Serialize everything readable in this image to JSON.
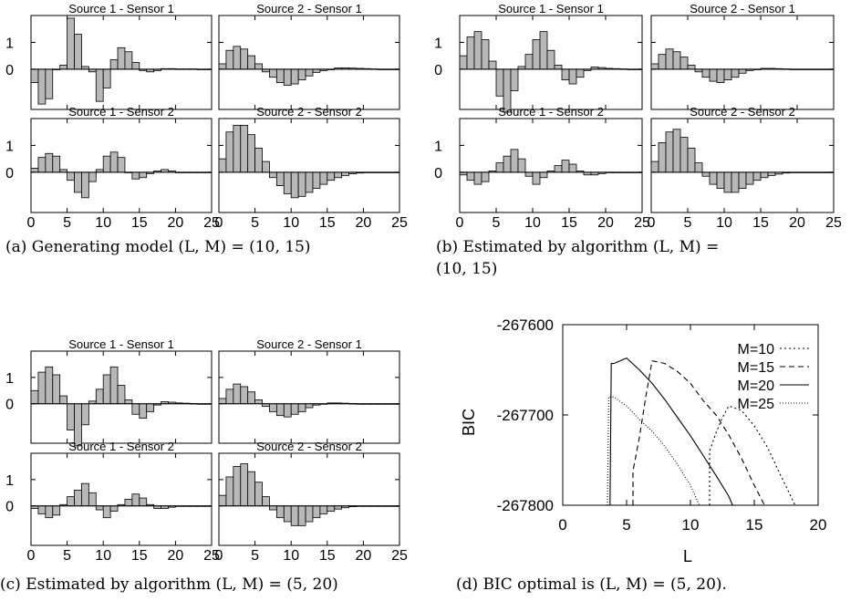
{
  "figures": [
    {
      "caption": "(a) Generating model (L, M) = (10, 15)",
      "panels": [
        {
          "title": "Source 1 - Sensor 1"
        },
        {
          "title": "Source 2 - Sensor 1"
        },
        {
          "title": "Source 1 - Sensor 2"
        },
        {
          "title": "Source 2 - Sensor 2"
        }
      ]
    },
    {
      "caption_line1": "(b) Estimated by algorithm (L, M) =",
      "caption_line2": "(10, 15)",
      "panels": [
        {
          "title": "Source 1 - Sensor 1"
        },
        {
          "title": "Source 2 - Sensor 1"
        },
        {
          "title": "Source 1 - Sensor 2"
        },
        {
          "title": "Source 2 - Sensor 2"
        }
      ]
    },
    {
      "caption": "(c) Estimated by algorithm (L, M) = (5, 20)",
      "panels": [
        {
          "title": "Source 1 - Sensor 1"
        },
        {
          "title": "Source 2 - Sensor 1"
        },
        {
          "title": "Source 1 - Sensor 2"
        },
        {
          "title": "Source 2 - Sensor 2"
        }
      ]
    },
    {
      "caption": "(d) BIC optimal is (L, M) = (5, 20)."
    }
  ],
  "chart_data": [
    {
      "type": "bar",
      "figure": "a",
      "xlim": [
        0,
        25
      ],
      "ylim": [
        -1.5,
        2.0
      ],
      "xticks": [
        "0",
        "5",
        "10",
        "15",
        "20",
        "25"
      ],
      "yticks": [
        "0",
        "1"
      ],
      "panels": [
        {
          "title": "Source 1 - Sensor 1",
          "x": [
            0,
            1,
            2,
            3,
            4,
            5,
            6,
            7,
            8,
            9,
            10,
            11,
            12,
            13,
            14,
            15,
            16,
            17,
            18,
            19,
            20,
            21,
            22,
            23,
            24
          ],
          "values": [
            -0.5,
            -1.3,
            -1.1,
            0,
            0.15,
            1.9,
            1.3,
            0.1,
            -0.1,
            -1.2,
            -0.7,
            0.35,
            0.8,
            0.65,
            0.25,
            -0.05,
            -0.1,
            -0.05,
            0.02,
            0.02,
            0.01,
            0.01,
            0.01,
            0.0,
            0.0
          ]
        },
        {
          "title": "Source 2 - Sensor 1",
          "x": [
            0,
            1,
            2,
            3,
            4,
            5,
            6,
            7,
            8,
            9,
            10,
            11,
            12,
            13,
            14,
            15,
            16,
            17,
            18,
            19,
            20,
            21,
            22,
            23,
            24
          ],
          "values": [
            0.2,
            0.7,
            0.85,
            0.75,
            0.5,
            0.2,
            -0.1,
            -0.3,
            -0.5,
            -0.6,
            -0.55,
            -0.4,
            -0.25,
            -0.12,
            -0.05,
            0.0,
            0.05,
            0.05,
            0.04,
            0.03,
            0.02,
            0.01,
            0.0,
            0.0,
            0.0
          ]
        },
        {
          "title": "Source 1 - Sensor 2",
          "x": [
            0,
            1,
            2,
            3,
            4,
            5,
            6,
            7,
            8,
            9,
            10,
            11,
            12,
            13,
            14,
            15,
            16,
            17,
            18,
            19,
            20,
            21,
            22,
            23,
            24
          ],
          "values": [
            0.15,
            0.55,
            0.7,
            0.6,
            0.1,
            -0.3,
            -0.75,
            -0.95,
            -0.35,
            0.1,
            0.6,
            0.75,
            0.55,
            0.0,
            -0.25,
            -0.2,
            -0.05,
            0.05,
            0.1,
            0.05,
            0.0,
            0.0,
            0.0,
            0.0,
            0.0
          ]
        },
        {
          "title": "Source 2 - Sensor 2",
          "x": [
            0,
            1,
            2,
            3,
            4,
            5,
            6,
            7,
            8,
            9,
            10,
            11,
            12,
            13,
            14,
            15,
            16,
            17,
            18,
            19,
            20,
            21,
            22,
            23,
            24
          ],
          "values": [
            0.5,
            1.5,
            1.75,
            1.75,
            1.4,
            0.9,
            0.4,
            -0.2,
            -0.5,
            -0.8,
            -0.95,
            -0.9,
            -0.75,
            -0.6,
            -0.45,
            -0.3,
            -0.2,
            -0.12,
            -0.06,
            -0.03,
            -0.01,
            0.0,
            0.0,
            0.0,
            0.0
          ]
        }
      ]
    },
    {
      "type": "bar",
      "figure": "b",
      "xlim": [
        0,
        25
      ],
      "ylim": [
        -1.5,
        2.0
      ],
      "xticks": [
        "0",
        "5",
        "10",
        "15",
        "20",
        "25"
      ],
      "yticks": [
        "0",
        "1"
      ],
      "panels": [
        {
          "title": "Source 1 - Sensor 1",
          "x": [
            0,
            1,
            2,
            3,
            4,
            5,
            6,
            7,
            8,
            9,
            10,
            11,
            12,
            13,
            14,
            15,
            16,
            17,
            18,
            19,
            20,
            21,
            22,
            23,
            24
          ],
          "values": [
            0.5,
            1.2,
            1.4,
            1.1,
            0.3,
            -1.0,
            -1.6,
            -0.8,
            0.1,
            0.55,
            1.1,
            1.4,
            0.7,
            0.15,
            -0.4,
            -0.55,
            -0.3,
            -0.05,
            0.08,
            0.06,
            0.03,
            0.02,
            0.01,
            0.0,
            0.0
          ]
        },
        {
          "title": "Source 2 - Sensor 1",
          "x": [
            0,
            1,
            2,
            3,
            4,
            5,
            6,
            7,
            8,
            9,
            10,
            11,
            12,
            13,
            14,
            15,
            16,
            17,
            18,
            19,
            20,
            21,
            22,
            23,
            24
          ],
          "values": [
            0.2,
            0.55,
            0.75,
            0.65,
            0.45,
            0.15,
            -0.1,
            -0.3,
            -0.45,
            -0.5,
            -0.4,
            -0.3,
            -0.15,
            -0.05,
            0.0,
            0.03,
            0.03,
            0.02,
            0.01,
            0.0,
            0.0,
            0.0,
            0.0,
            0.0,
            0.0
          ]
        },
        {
          "title": "Source 1 - Sensor 2",
          "x": [
            0,
            1,
            2,
            3,
            4,
            5,
            6,
            7,
            8,
            9,
            10,
            11,
            12,
            13,
            14,
            15,
            16,
            17,
            18,
            19,
            20,
            21,
            22,
            23,
            24
          ],
          "values": [
            -0.1,
            -0.3,
            -0.45,
            -0.35,
            0.05,
            0.35,
            0.6,
            0.85,
            0.5,
            -0.15,
            -0.45,
            -0.2,
            0.05,
            0.25,
            0.45,
            0.3,
            0.05,
            -0.1,
            -0.1,
            -0.05,
            0.0,
            0.0,
            0.0,
            0.0,
            0.0
          ]
        },
        {
          "title": "Source 2 - Sensor 2",
          "x": [
            0,
            1,
            2,
            3,
            4,
            5,
            6,
            7,
            8,
            9,
            10,
            11,
            12,
            13,
            14,
            15,
            16,
            17,
            18,
            19,
            20,
            21,
            22,
            23,
            24
          ],
          "values": [
            0.4,
            1.1,
            1.5,
            1.6,
            1.3,
            0.9,
            0.35,
            -0.15,
            -0.45,
            -0.6,
            -0.75,
            -0.75,
            -0.6,
            -0.45,
            -0.3,
            -0.2,
            -0.12,
            -0.07,
            -0.03,
            -0.01,
            0.0,
            0.0,
            0.0,
            0.0,
            0.0
          ]
        }
      ]
    },
    {
      "type": "bar",
      "figure": "c",
      "xlim": [
        0,
        25
      ],
      "ylim": [
        -1.5,
        2.0
      ],
      "xticks": [
        "0",
        "5",
        "10",
        "15",
        "20",
        "25"
      ],
      "yticks": [
        "0",
        "1"
      ],
      "panels": [
        {
          "title": "Source 1 - Sensor 1",
          "x": [
            0,
            1,
            2,
            3,
            4,
            5,
            6,
            7,
            8,
            9,
            10,
            11,
            12,
            13,
            14,
            15,
            16,
            17,
            18,
            19,
            20,
            21,
            22,
            23,
            24
          ],
          "values": [
            0.5,
            1.2,
            1.4,
            1.1,
            0.3,
            -1.0,
            -1.6,
            -0.8,
            0.1,
            0.55,
            1.1,
            1.4,
            0.7,
            0.15,
            -0.4,
            -0.55,
            -0.3,
            -0.05,
            0.08,
            0.06,
            0.03,
            0.02,
            0.01,
            0.0,
            0.0
          ]
        },
        {
          "title": "Source 2 - Sensor 1",
          "x": [
            0,
            1,
            2,
            3,
            4,
            5,
            6,
            7,
            8,
            9,
            10,
            11,
            12,
            13,
            14,
            15,
            16,
            17,
            18,
            19,
            20,
            21,
            22,
            23,
            24
          ],
          "values": [
            0.2,
            0.55,
            0.75,
            0.65,
            0.45,
            0.15,
            -0.1,
            -0.3,
            -0.45,
            -0.5,
            -0.4,
            -0.3,
            -0.15,
            -0.05,
            0.0,
            0.03,
            0.03,
            0.02,
            0.01,
            0.0,
            0.0,
            0.0,
            0.0,
            0.0,
            0.0
          ]
        },
        {
          "title": "Source 1 - Sensor 2",
          "x": [
            0,
            1,
            2,
            3,
            4,
            5,
            6,
            7,
            8,
            9,
            10,
            11,
            12,
            13,
            14,
            15,
            16,
            17,
            18,
            19,
            20,
            21,
            22,
            23,
            24
          ],
          "values": [
            -0.1,
            -0.3,
            -0.45,
            -0.35,
            0.05,
            0.35,
            0.6,
            0.85,
            0.5,
            -0.15,
            -0.45,
            -0.2,
            0.05,
            0.25,
            0.45,
            0.3,
            0.05,
            -0.1,
            -0.1,
            -0.05,
            0.0,
            0.0,
            0.0,
            0.0,
            0.0
          ]
        },
        {
          "title": "Source 2 - Sensor 2",
          "x": [
            0,
            1,
            2,
            3,
            4,
            5,
            6,
            7,
            8,
            9,
            10,
            11,
            12,
            13,
            14,
            15,
            16,
            17,
            18,
            19,
            20,
            21,
            22,
            23,
            24
          ],
          "values": [
            0.4,
            1.1,
            1.5,
            1.6,
            1.3,
            0.9,
            0.35,
            -0.15,
            -0.45,
            -0.6,
            -0.75,
            -0.75,
            -0.6,
            -0.45,
            -0.3,
            -0.2,
            -0.12,
            -0.07,
            -0.03,
            -0.01,
            0.0,
            0.0,
            0.0,
            0.0,
            0.0
          ]
        }
      ]
    },
    {
      "type": "line",
      "figure": "d",
      "xlabel": "L",
      "ylabel": "BIC",
      "xlim": [
        0,
        20
      ],
      "ylim": [
        -267800,
        -267600
      ],
      "xticks": [
        "0",
        "5",
        "10",
        "15",
        "20"
      ],
      "yticks": [
        "-267600",
        "-267700",
        "-267800"
      ],
      "grid": false,
      "legend_position": "top-right",
      "series": [
        {
          "name": "M=10",
          "dash": "dotted-sparse",
          "x": [
            11.5,
            11.5,
            12,
            12.5,
            13,
            14,
            15,
            16,
            17,
            18.2
          ],
          "y": [
            -267800,
            -267740,
            -267720,
            -267703,
            -267690,
            -267695,
            -267712,
            -267735,
            -267765,
            -267800
          ]
        },
        {
          "name": "M=15",
          "dash": "dashed",
          "x": [
            5.5,
            5.5,
            6,
            6.5,
            7,
            8,
            9,
            10,
            11,
            12,
            13,
            14,
            15,
            15.8
          ],
          "y": [
            -267800,
            -267762,
            -267725,
            -267680,
            -267640,
            -267643,
            -267652,
            -267665,
            -267684,
            -267700,
            -267722,
            -267748,
            -267778,
            -267800
          ]
        },
        {
          "name": "M=20",
          "dash": "solid",
          "x": [
            3.7,
            3.8,
            4,
            4.5,
            5,
            6,
            7,
            8,
            9,
            10,
            11,
            12,
            13,
            13.3
          ],
          "y": [
            -267800,
            -267643,
            -267643,
            -267640,
            -267637,
            -267650,
            -267665,
            -267683,
            -267703,
            -267723,
            -267745,
            -267767,
            -267790,
            -267800
          ]
        },
        {
          "name": "M=25",
          "dash": "dotted-dense",
          "x": [
            3.5,
            3.6,
            4,
            5,
            6,
            7,
            8,
            9,
            10,
            10.7
          ],
          "y": [
            -267800,
            -267680,
            -267680,
            -267690,
            -267705,
            -267718,
            -267735,
            -267755,
            -267778,
            -267800
          ]
        }
      ]
    }
  ]
}
